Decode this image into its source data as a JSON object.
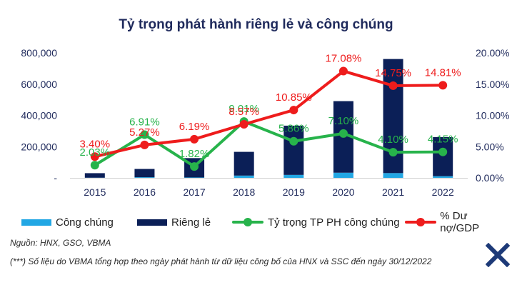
{
  "title": "Tỷ trọng phát hành riêng lẻ và công chúng",
  "colors": {
    "public": "#22a7e4",
    "private": "#0b1f57",
    "public_ratio": "#27b34b",
    "debt_gdp": "#ee1c1c",
    "label_green": "#27b34b",
    "label_red": "#ee1c1c",
    "axis_text": "#1f2a5c"
  },
  "legend": {
    "public": "Công chúng",
    "private": "Riêng lẻ",
    "public_ratio": "Tỷ trọng TP PH công chúng",
    "debt_gdp": "% Dư nợ/GDP"
  },
  "notes": {
    "source": "Nguồn: HNX, GSO, VBMA",
    "footnote": "(***) Số liệu do VBMA tổng hợp theo ngày phát hành từ dữ liệu công bố của HNX và SSC đến ngày 30/12/2022"
  },
  "logo_icon": "x-logo-icon",
  "chart_data": {
    "type": "bar",
    "categories": [
      "2015",
      "2016",
      "2017",
      "2018",
      "2019",
      "2020",
      "2021",
      "2022"
    ],
    "series": [
      {
        "name": "Công chúng",
        "type": "bar",
        "axis": "left",
        "values": [
          1000,
          4000,
          2500,
          14500,
          19000,
          33000,
          30600,
          10800
        ]
      },
      {
        "name": "Riêng lẻ",
        "type": "bar",
        "axis": "left",
        "values": [
          29000,
          53000,
          124000,
          152000,
          315000,
          458000,
          730000,
          250000
        ]
      },
      {
        "name": "Tỷ trọng TP PH công chúng",
        "type": "line",
        "axis": "right",
        "values": [
          2.03,
          6.91,
          1.82,
          9.01,
          5.86,
          7.1,
          4.1,
          4.15
        ],
        "labels": [
          "2.03%",
          "6.91%",
          "1.82%",
          "9.01%",
          "5.86%",
          "7.10%",
          "4.10%",
          "4.15%"
        ]
      },
      {
        "name": "% Dư nợ/GDP",
        "type": "line",
        "axis": "right",
        "values": [
          3.4,
          5.27,
          6.19,
          8.57,
          10.85,
          17.08,
          14.75,
          14.81
        ],
        "labels": [
          "3.40%",
          "5.27%",
          "6.19%",
          "8.57%",
          "10.85%",
          "17.08%",
          "14.75%",
          "14.81%"
        ]
      }
    ],
    "stacked": true,
    "y_left": {
      "min": 0,
      "max": 800000,
      "ticks": [
        "-",
        "200,000",
        "400,000",
        "600,000",
        "800,000"
      ]
    },
    "y_right": {
      "min": 0,
      "max": 20,
      "ticks": [
        "0.00%",
        "5.00%",
        "10.00%",
        "15.00%",
        "20.00%"
      ]
    },
    "grid": false,
    "legend_position": "bottom"
  }
}
